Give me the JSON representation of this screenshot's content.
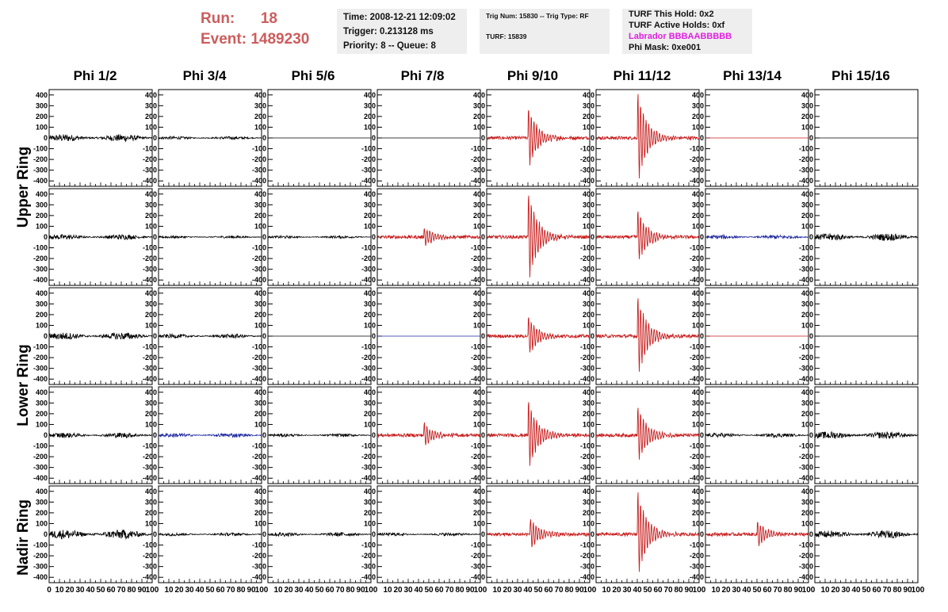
{
  "header": {
    "run_label": "Run:",
    "run_value": "18",
    "event_label": "Event:",
    "event_value": "1489230",
    "time": "Time: 2008-12-21 12:09:02",
    "trigger": "Trigger: 0.213128 ms",
    "priority": "Priority: 8 -- Queue: 8",
    "trig_num": "Trig Num: 15830 -- Trig Type: RF",
    "turf": "TURF: 15839",
    "turf_this_hold": "TURF This Hold: 0x2",
    "turf_active_holds": "TURF Active Holds: 0xf",
    "labrador": "Labrador BBBAABBBBB",
    "phi_mask": "Phi Mask: 0xe001",
    "colors": {
      "run": "#cd5c5c",
      "labrador": "#e020e0",
      "box": "#eeeeee"
    }
  },
  "chart_data": {
    "type": "line",
    "phi_sectors": [
      "Phi 1/2",
      "Phi 3/4",
      "Phi 5/6",
      "Phi 7/8",
      "Phi 9/10",
      "Phi 11/12",
      "Phi 13/14",
      "Phi 15/16"
    ],
    "rings": [
      "Upper Ring",
      "Upper Ring",
      "Lower Ring",
      "Lower Ring",
      "Nadir Ring"
    ],
    "ring_labels": [
      "Upper Ring",
      "Lower Ring",
      "Nadir Ring"
    ],
    "xlim": [
      0,
      100
    ],
    "ylim": [
      -450,
      450
    ],
    "y_ticks": [
      400,
      300,
      200,
      100,
      0,
      -100,
      -200,
      -300,
      -400
    ],
    "x_tick_labels": [
      "10",
      "20",
      "30",
      "40",
      "50",
      "60",
      "70",
      "80",
      "90",
      "100"
    ],
    "x_first_tick_label": "0",
    "colors": {
      "black": "#000000",
      "red": "#c81e1e",
      "blue": "#1e28a0"
    },
    "panels": [
      [
        {
          "color": "black",
          "kind": "noise",
          "amp": 35,
          "peak": 0
        },
        {
          "color": "black",
          "kind": "noise",
          "amp": 15,
          "peak": 0
        },
        {
          "color": "black",
          "kind": "flat",
          "amp": 0,
          "peak": 0
        },
        {
          "color": "black",
          "kind": "flat",
          "amp": 0,
          "peak": 0
        },
        {
          "color": "red",
          "kind": "pulse",
          "amp": 15,
          "peak": 300,
          "start": 40
        },
        {
          "color": "red",
          "kind": "pulse",
          "amp": 15,
          "peak": 450,
          "start": 40
        },
        {
          "color": "red",
          "kind": "flat",
          "amp": 0,
          "peak": 0
        },
        {
          "color": "black",
          "kind": "flat",
          "amp": 0,
          "peak": 0
        }
      ],
      [
        {
          "color": "black",
          "kind": "noise",
          "amp": 25,
          "peak": 0
        },
        {
          "color": "black",
          "kind": "noise",
          "amp": 12,
          "peak": 0
        },
        {
          "color": "black",
          "kind": "noise",
          "amp": 12,
          "peak": 0
        },
        {
          "color": "red",
          "kind": "pulse",
          "amp": 15,
          "peak": 100,
          "start": 45
        },
        {
          "color": "red",
          "kind": "pulse",
          "amp": 15,
          "peak": 450,
          "start": 40
        },
        {
          "color": "red",
          "kind": "pulse",
          "amp": 15,
          "peak": 270,
          "start": 40
        },
        {
          "color": "blue",
          "kind": "noise",
          "amp": 20,
          "peak": 0
        },
        {
          "color": "black",
          "kind": "noise",
          "amp": 35,
          "peak": 0
        }
      ],
      [
        {
          "color": "black",
          "kind": "noise",
          "amp": 35,
          "peak": 0
        },
        {
          "color": "black",
          "kind": "noise",
          "amp": 20,
          "peak": 0
        },
        {
          "color": "black",
          "kind": "flat",
          "amp": 0,
          "peak": 0
        },
        {
          "color": "blue",
          "kind": "flat",
          "amp": 0,
          "peak": 0
        },
        {
          "color": "red",
          "kind": "pulse",
          "amp": 15,
          "peak": 200,
          "start": 40
        },
        {
          "color": "red",
          "kind": "pulse",
          "amp": 15,
          "peak": 400,
          "start": 40
        },
        {
          "color": "red",
          "kind": "flat",
          "amp": 0,
          "peak": 0
        },
        {
          "color": "black",
          "kind": "flat",
          "amp": 0,
          "peak": 0
        }
      ],
      [
        {
          "color": "black",
          "kind": "noise",
          "amp": 25,
          "peak": 0
        },
        {
          "color": "blue",
          "kind": "noise",
          "amp": 20,
          "peak": 0
        },
        {
          "color": "black",
          "kind": "noise",
          "amp": 15,
          "peak": 0
        },
        {
          "color": "red",
          "kind": "pulse",
          "amp": 15,
          "peak": 120,
          "start": 45
        },
        {
          "color": "red",
          "kind": "pulse",
          "amp": 15,
          "peak": 350,
          "start": 40
        },
        {
          "color": "red",
          "kind": "pulse",
          "amp": 15,
          "peak": 280,
          "start": 40
        },
        {
          "color": "black",
          "kind": "noise",
          "amp": 20,
          "peak": 0
        },
        {
          "color": "black",
          "kind": "noise",
          "amp": 35,
          "peak": 0
        }
      ],
      [
        {
          "color": "black",
          "kind": "noise",
          "amp": 45,
          "peak": 0
        },
        {
          "color": "black",
          "kind": "noise",
          "amp": 15,
          "peak": 0
        },
        {
          "color": "black",
          "kind": "noise",
          "amp": 20,
          "peak": 0
        },
        {
          "color": "black",
          "kind": "noise",
          "amp": 15,
          "peak": 0
        },
        {
          "color": "red",
          "kind": "pulse",
          "amp": 15,
          "peak": 160,
          "start": 42
        },
        {
          "color": "red",
          "kind": "pulse",
          "amp": 15,
          "peak": 430,
          "start": 40
        },
        {
          "color": "red",
          "kind": "pulse",
          "amp": 15,
          "peak": 130,
          "start": 50
        },
        {
          "color": "black",
          "kind": "noise",
          "amp": 35,
          "peak": 0
        }
      ]
    ]
  }
}
